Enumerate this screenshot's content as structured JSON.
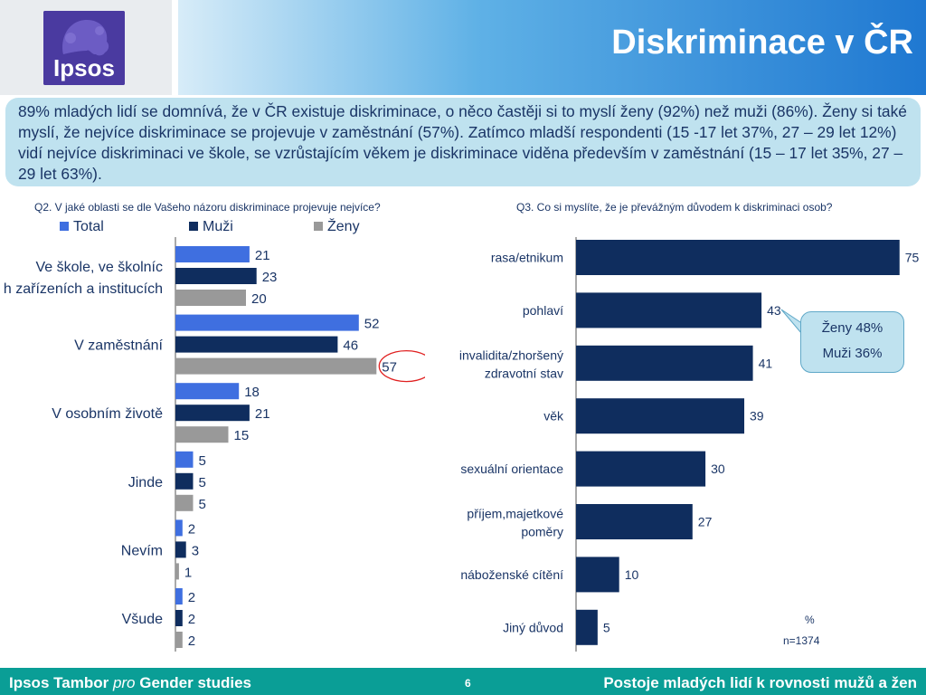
{
  "header": {
    "title": "Diskriminace v ČR",
    "logo_text": "Ipsos"
  },
  "summary": "89% mladých lidí se domnívá, že v ČR existuje diskriminace, o něco častěji si to myslí ženy (92%) než muži (86%). Ženy si také myslí, že nejvíce diskriminace se projevuje v zaměstnání (57%). Zatímco mladší respondenti (15 -17 let 37%, 27 – 29 let 12%) vidí nejvíce diskriminaci ve škole, se vzrůstajícím věkem je diskriminace viděna především v zaměstnání (15 – 17 let 35%, 27 – 29 let 63%).",
  "callout": {
    "line1": "Ženy 48%",
    "line2": "Muži 36%"
  },
  "notes": {
    "percent": "%",
    "n": "n=1374"
  },
  "footer": {
    "left_prefix": "Ipsos Tambor ",
    "left_italic": "pro",
    "left_suffix": " Gender studies",
    "page": "6",
    "right": "Postoje mladých lidí k rovnosti mužů a žen"
  },
  "colors": {
    "total": "#3f6fe0",
    "muzi": "#0f2d5e",
    "zeny": "#999999",
    "highlight": "#e02020"
  },
  "chart_data": [
    {
      "type": "bar",
      "orientation": "horizontal",
      "title": "Q2. V jaké oblasti se dle Vašeho názoru diskriminace projevuje nejvíce?",
      "categories": [
        "Ve škole, ve školních zařízeních a institucích",
        "V zaměstnání",
        "V osobním životě",
        "Jinde",
        "Nevím",
        "Všude"
      ],
      "series": [
        {
          "name": "Total",
          "values": [
            21,
            52,
            18,
            5,
            2,
            2
          ]
        },
        {
          "name": "Muži",
          "values": [
            23,
            46,
            21,
            5,
            3,
            2
          ]
        },
        {
          "name": "Ženy",
          "values": [
            20,
            57,
            15,
            5,
            1,
            2
          ]
        }
      ],
      "highlight": {
        "category": "V zaměstnání",
        "series": "Ženy",
        "value": 57
      },
      "legend_position": "top-left"
    },
    {
      "type": "bar",
      "orientation": "horizontal",
      "title": "Q3. Co si myslíte, že je převážným důvodem k diskriminaci osob?",
      "categories": [
        "rasa/etnikum",
        "pohlaví",
        "invalidita/zhoršený zdravotní stav",
        "věk",
        "sexuální orientace",
        "příjem,majetkové poměry",
        "náboženské cítění",
        "Jiný důvod"
      ],
      "values": [
        75,
        43,
        41,
        39,
        30,
        27,
        10,
        5
      ],
      "unit": "%"
    }
  ]
}
